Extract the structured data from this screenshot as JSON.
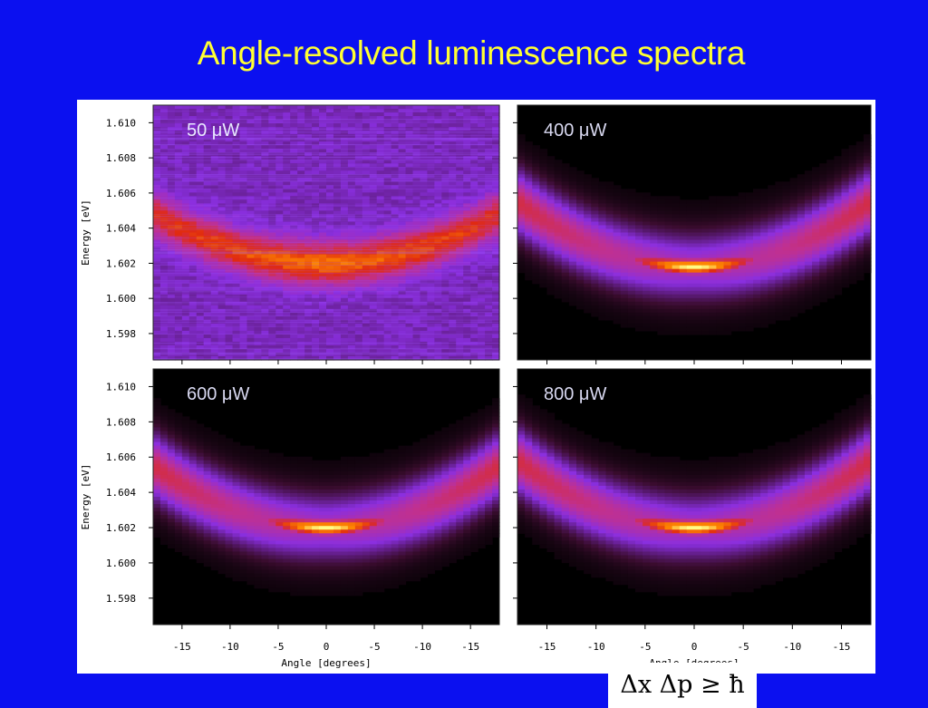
{
  "slide": {
    "title": "Angle-resolved luminescence spectra"
  },
  "annotation": {
    "uncertainty_relation": "Δx Δp ≥ ħ"
  },
  "chart_data": {
    "type": "heatmap",
    "ylabel": "Energy [eV]",
    "xlabel": "Angle [degrees]",
    "y_ticks": [
      "1.610",
      "1.608",
      "1.606",
      "1.604",
      "1.602",
      "1.600",
      "1.598"
    ],
    "x_ticks": [
      "-15",
      "-10",
      "-5",
      "0",
      "-5",
      "-10",
      "-15"
    ],
    "ylim": [
      1.5965,
      1.611
    ],
    "xlim": [
      -18,
      18
    ],
    "colormap": [
      "#000000",
      "#3a0c2e",
      "#8a2fe0",
      "#c03090",
      "#e02a10",
      "#ff8a00",
      "#ffff88"
    ],
    "panels": [
      {
        "label": "50 μW",
        "power_uW": 50,
        "dispersion": {
          "min_energy_eV": 1.602,
          "min_angle_deg": 0,
          "edge_energy_eV": 1.6048,
          "edge_angle_deg": 18
        },
        "peak_intensity": 0.85,
        "noise": "high"
      },
      {
        "label": "400 μW",
        "power_uW": 400,
        "dispersion": {
          "min_energy_eV": 1.6018,
          "min_angle_deg": 0,
          "edge_energy_eV": 1.6055,
          "edge_angle_deg": 18
        },
        "peak_intensity": 1.0,
        "noise": "low"
      },
      {
        "label": "600 μW",
        "power_uW": 600,
        "dispersion": {
          "min_energy_eV": 1.602,
          "min_angle_deg": 0,
          "edge_energy_eV": 1.6055,
          "edge_angle_deg": 18
        },
        "peak_intensity": 1.0,
        "noise": "low"
      },
      {
        "label": "800 μW",
        "power_uW": 800,
        "dispersion": {
          "min_energy_eV": 1.602,
          "min_angle_deg": 0,
          "edge_energy_eV": 1.6058,
          "edge_angle_deg": 18
        },
        "peak_intensity": 1.0,
        "noise": "low"
      }
    ]
  }
}
